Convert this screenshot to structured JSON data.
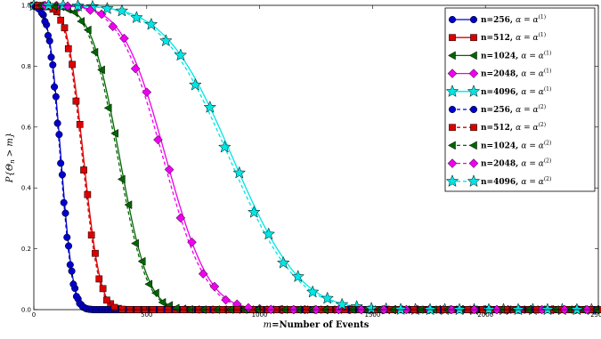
{
  "chart_data": {
    "type": "line",
    "title": "",
    "xlabel": "m=Number of Events",
    "ylabel": "P{Θ_n > m}",
    "xlim": [
      0,
      2500
    ],
    "ylim": [
      0.0,
      1.0
    ],
    "xticks": [
      0,
      500,
      1000,
      1500,
      2000,
      2500
    ],
    "yticks": [
      0.0,
      0.2,
      0.4,
      0.6,
      0.8,
      1.0
    ],
    "xtick_labels": [
      "0",
      "500",
      "1000",
      "1500",
      "2000",
      "2500"
    ],
    "ytick_labels": [
      "0.0",
      "0.2",
      "0.4",
      "0.6",
      "0.8",
      "1.0"
    ],
    "legend_position": "top-right",
    "series": [
      {
        "name": "n=256, α = α(1)",
        "color": "#0000cc",
        "marker": "circle",
        "dashed": false,
        "mu": 120,
        "sigma": 42,
        "mstep": 14
      },
      {
        "name": "n=512, α = α(1)",
        "color": "#dd0000",
        "marker": "square",
        "dashed": false,
        "mu": 220,
        "sigma": 58,
        "mstep": 34
      },
      {
        "name": "n=1024, α = α(1)",
        "color": "#006600",
        "marker": "triangle-left",
        "dashed": false,
        "mu": 380,
        "sigma": 100,
        "mstep": 60
      },
      {
        "name": "n=2048, α = α(1)",
        "color": "#ee00ee",
        "marker": "diamond",
        "dashed": false,
        "mu": 585,
        "sigma": 150,
        "mstep": 100
      },
      {
        "name": "n=4096, α = α(1)",
        "color": "#00e5e5",
        "marker": "star",
        "dashed": false,
        "mu": 880,
        "sigma": 235,
        "mstep": 130
      },
      {
        "name": "n=256, α = α(2)",
        "color": "#0000cc",
        "marker": "circle",
        "dashed": true,
        "mu": 117,
        "sigma": 42,
        "mstep": 14
      },
      {
        "name": "n=512, α = α(2)",
        "color": "#dd0000",
        "marker": "square",
        "dashed": true,
        "mu": 215,
        "sigma": 58,
        "mstep": 34
      },
      {
        "name": "n=1024, α = α(2)",
        "color": "#006600",
        "marker": "triangle-left",
        "dashed": true,
        "mu": 372,
        "sigma": 100,
        "mstep": 60
      },
      {
        "name": "n=2048, α = α(2)",
        "color": "#ee00ee",
        "marker": "diamond",
        "dashed": true,
        "mu": 572,
        "sigma": 150,
        "mstep": 100
      },
      {
        "name": "n=4096, α = α(2)",
        "color": "#00e5e5",
        "marker": "star",
        "dashed": true,
        "mu": 865,
        "sigma": 235,
        "mstep": 130
      }
    ]
  },
  "legend": {
    "entries": [
      {
        "prefix": "n=256, ",
        "alpha": "α = α",
        "sup": "(1)"
      },
      {
        "prefix": "n=512, ",
        "alpha": "α = α",
        "sup": "(1)"
      },
      {
        "prefix": "n=1024, ",
        "alpha": "α = α",
        "sup": "(1)"
      },
      {
        "prefix": "n=2048, ",
        "alpha": "α = α",
        "sup": "(1)"
      },
      {
        "prefix": "n=4096, ",
        "alpha": "α = α",
        "sup": "(1)"
      },
      {
        "prefix": "n=256, ",
        "alpha": "α = α",
        "sup": "(2)"
      },
      {
        "prefix": "n=512, ",
        "alpha": "α = α",
        "sup": "(2)"
      },
      {
        "prefix": "n=1024, ",
        "alpha": "α = α",
        "sup": "(2)"
      },
      {
        "prefix": "n=2048, ",
        "alpha": "α = α",
        "sup": "(2)"
      },
      {
        "prefix": "n=4096, ",
        "alpha": "α = α",
        "sup": "(2)"
      }
    ]
  },
  "axis_labels": {
    "x_italic": "m",
    "x_rest": "=Number of Events",
    "y_text": "P{Θ",
    "y_sub": "n",
    "y_rest": " > m}"
  }
}
